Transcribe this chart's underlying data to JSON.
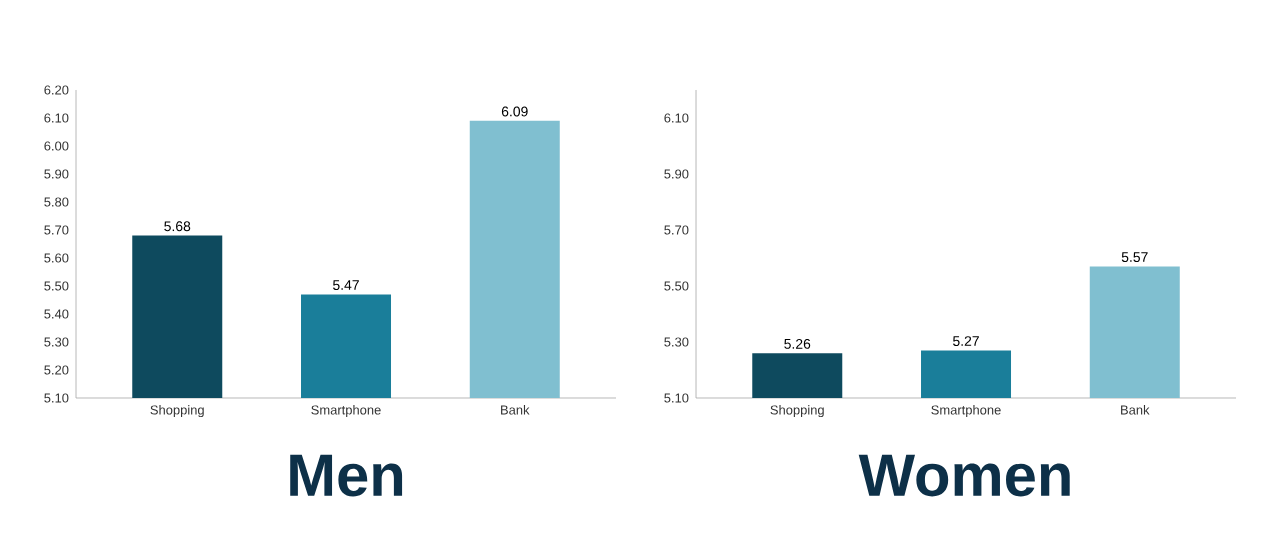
{
  "chart_data": [
    {
      "type": "bar",
      "title": "Men",
      "categories": [
        "Shopping",
        "Smartphone",
        "Bank"
      ],
      "values": [
        5.68,
        5.47,
        6.09
      ],
      "colors": [
        "#0e4a5e",
        "#1a7e9a",
        "#80bfd0"
      ],
      "ylim": [
        5.1,
        6.2
      ],
      "yticks": [
        {
          "value": 5.1,
          "label": "5.10"
        },
        {
          "value": 5.2,
          "label": "5.20"
        },
        {
          "value": 5.3,
          "label": "5.30"
        },
        {
          "value": 5.4,
          "label": "5.40"
        },
        {
          "value": 5.5,
          "label": "5.50"
        },
        {
          "value": 5.6,
          "label": "5.60"
        },
        {
          "value": 5.7,
          "label": "5.70"
        },
        {
          "value": 5.8,
          "label": "5.80"
        },
        {
          "value": 5.9,
          "label": "5.90"
        },
        {
          "value": 6.0,
          "label": "6.00"
        },
        {
          "value": 6.1,
          "label": "6.10"
        },
        {
          "value": 6.2,
          "label": "6.20"
        }
      ],
      "data_labels": true
    },
    {
      "type": "bar",
      "title": "Women",
      "categories": [
        "Shopping",
        "Smartphone",
        "Bank"
      ],
      "values": [
        5.26,
        5.27,
        5.57
      ],
      "colors": [
        "#0e4a5e",
        "#1a7e9a",
        "#80bfd0"
      ],
      "ylim": [
        5.1,
        6.2
      ],
      "yticks": [
        {
          "value": 5.1,
          "label": "5.10"
        },
        {
          "value": 5.3,
          "label": "5.30"
        },
        {
          "value": 5.5,
          "label": "5.50"
        },
        {
          "value": 5.7,
          "label": "5.70"
        },
        {
          "value": 5.9,
          "label": "5.90"
        },
        {
          "value": 6.1,
          "label": "6.10"
        }
      ],
      "data_labels": true
    }
  ]
}
